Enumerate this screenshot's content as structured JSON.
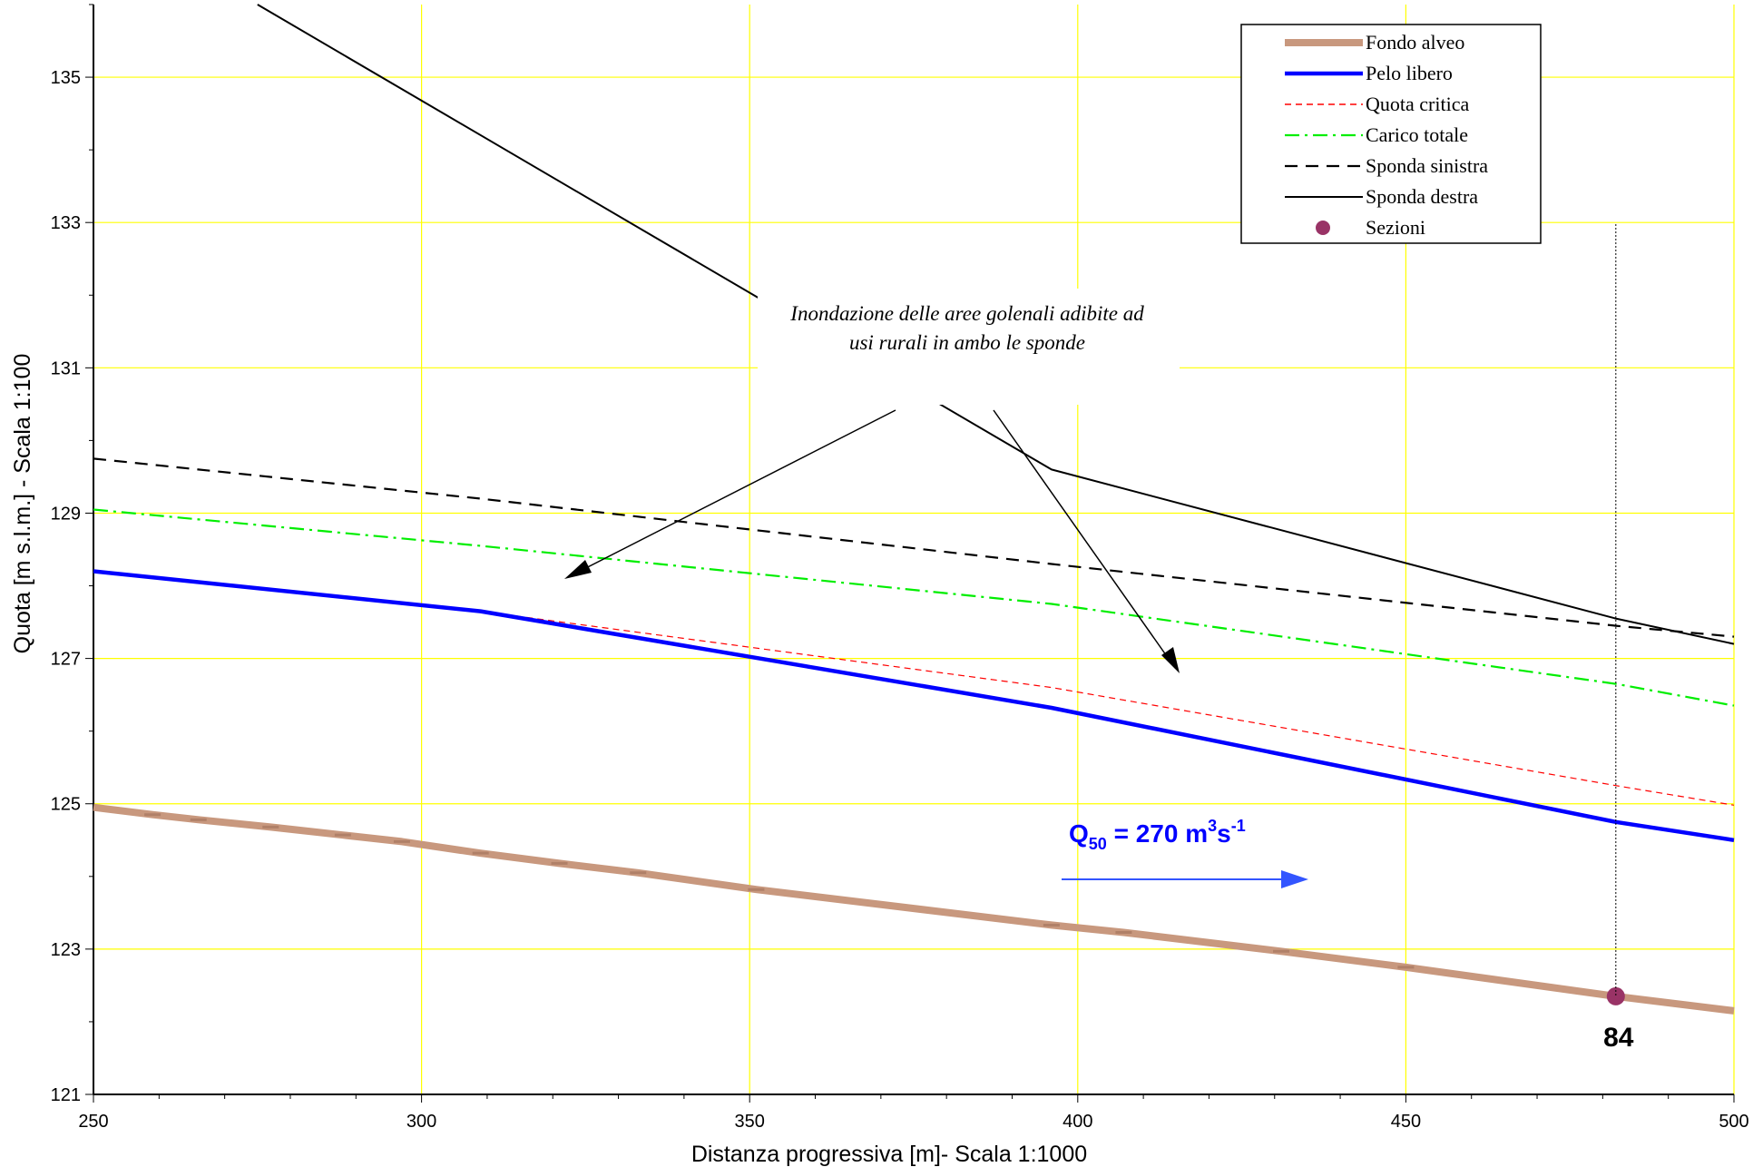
{
  "chart_data": {
    "type": "line",
    "title": "",
    "xlabel": "Distanza progressiva [m]-  Scala 1:1000",
    "ylabel": "Quota [m s.l.m.]  -  Scala 1:100",
    "xlim": [
      250,
      500
    ],
    "ylim": [
      121,
      136
    ],
    "xticks": [
      250,
      300,
      350,
      400,
      450,
      500
    ],
    "yticks": [
      121,
      123,
      125,
      127,
      129,
      131,
      133,
      135
    ],
    "grid": true,
    "legend_position": "top-right",
    "series": [
      {
        "name": "Fondo alveo",
        "color": "#c8987e",
        "style": "solid-thick",
        "x": [
          250,
          259,
          266,
          277,
          288,
          297,
          309,
          321,
          333,
          351,
          396,
          407,
          431,
          450,
          482,
          500
        ],
        "y": [
          124.95,
          124.85,
          124.78,
          124.68,
          124.57,
          124.48,
          124.32,
          124.18,
          124.05,
          123.82,
          123.33,
          123.23,
          122.97,
          122.75,
          122.35,
          122.15
        ]
      },
      {
        "name": "Pelo libero",
        "color": "#0000ff",
        "style": "solid",
        "x": [
          250,
          309,
          396,
          482,
          500
        ],
        "y": [
          128.2,
          127.65,
          126.32,
          124.75,
          124.5
        ]
      },
      {
        "name": "Quota critica",
        "color": "#ff0000",
        "style": "dashed-thin",
        "x": [
          250,
          309,
          396,
          482,
          500
        ],
        "y": [
          128.2,
          127.65,
          126.6,
          125.25,
          124.98
        ]
      },
      {
        "name": "Carico totale",
        "color": "#00ee00",
        "style": "dash-dot",
        "x": [
          250,
          309,
          396,
          482,
          500
        ],
        "y": [
          129.05,
          128.55,
          127.75,
          126.65,
          126.35
        ]
      },
      {
        "name": "Sponda sinistra",
        "color": "#000000",
        "style": "dashed",
        "x": [
          250,
          309,
          396,
          482,
          500
        ],
        "y": [
          129.75,
          129.2,
          128.3,
          127.45,
          127.3
        ]
      },
      {
        "name": "Sponda destra",
        "color": "#000000",
        "style": "solid-thin",
        "x": [
          275,
          396,
          482,
          500
        ],
        "y": [
          136,
          129.6,
          127.55,
          127.2
        ]
      },
      {
        "name": "Sezioni",
        "color": "#993366",
        "style": "marker",
        "x": [
          482
        ],
        "y": [
          122.35
        ]
      }
    ],
    "annotations": {
      "flooding_line1": "Inondazione delle aree golenali adibite ad",
      "flooding_line2": "usi rurali in ambo le sponde",
      "flow_prefix": "Q",
      "flow_sub": "50",
      "flow_mid": " = 270 m",
      "flow_sup1": "3",
      "flow_unit": "s",
      "flow_sup2": "-1",
      "section_label": "84"
    }
  }
}
